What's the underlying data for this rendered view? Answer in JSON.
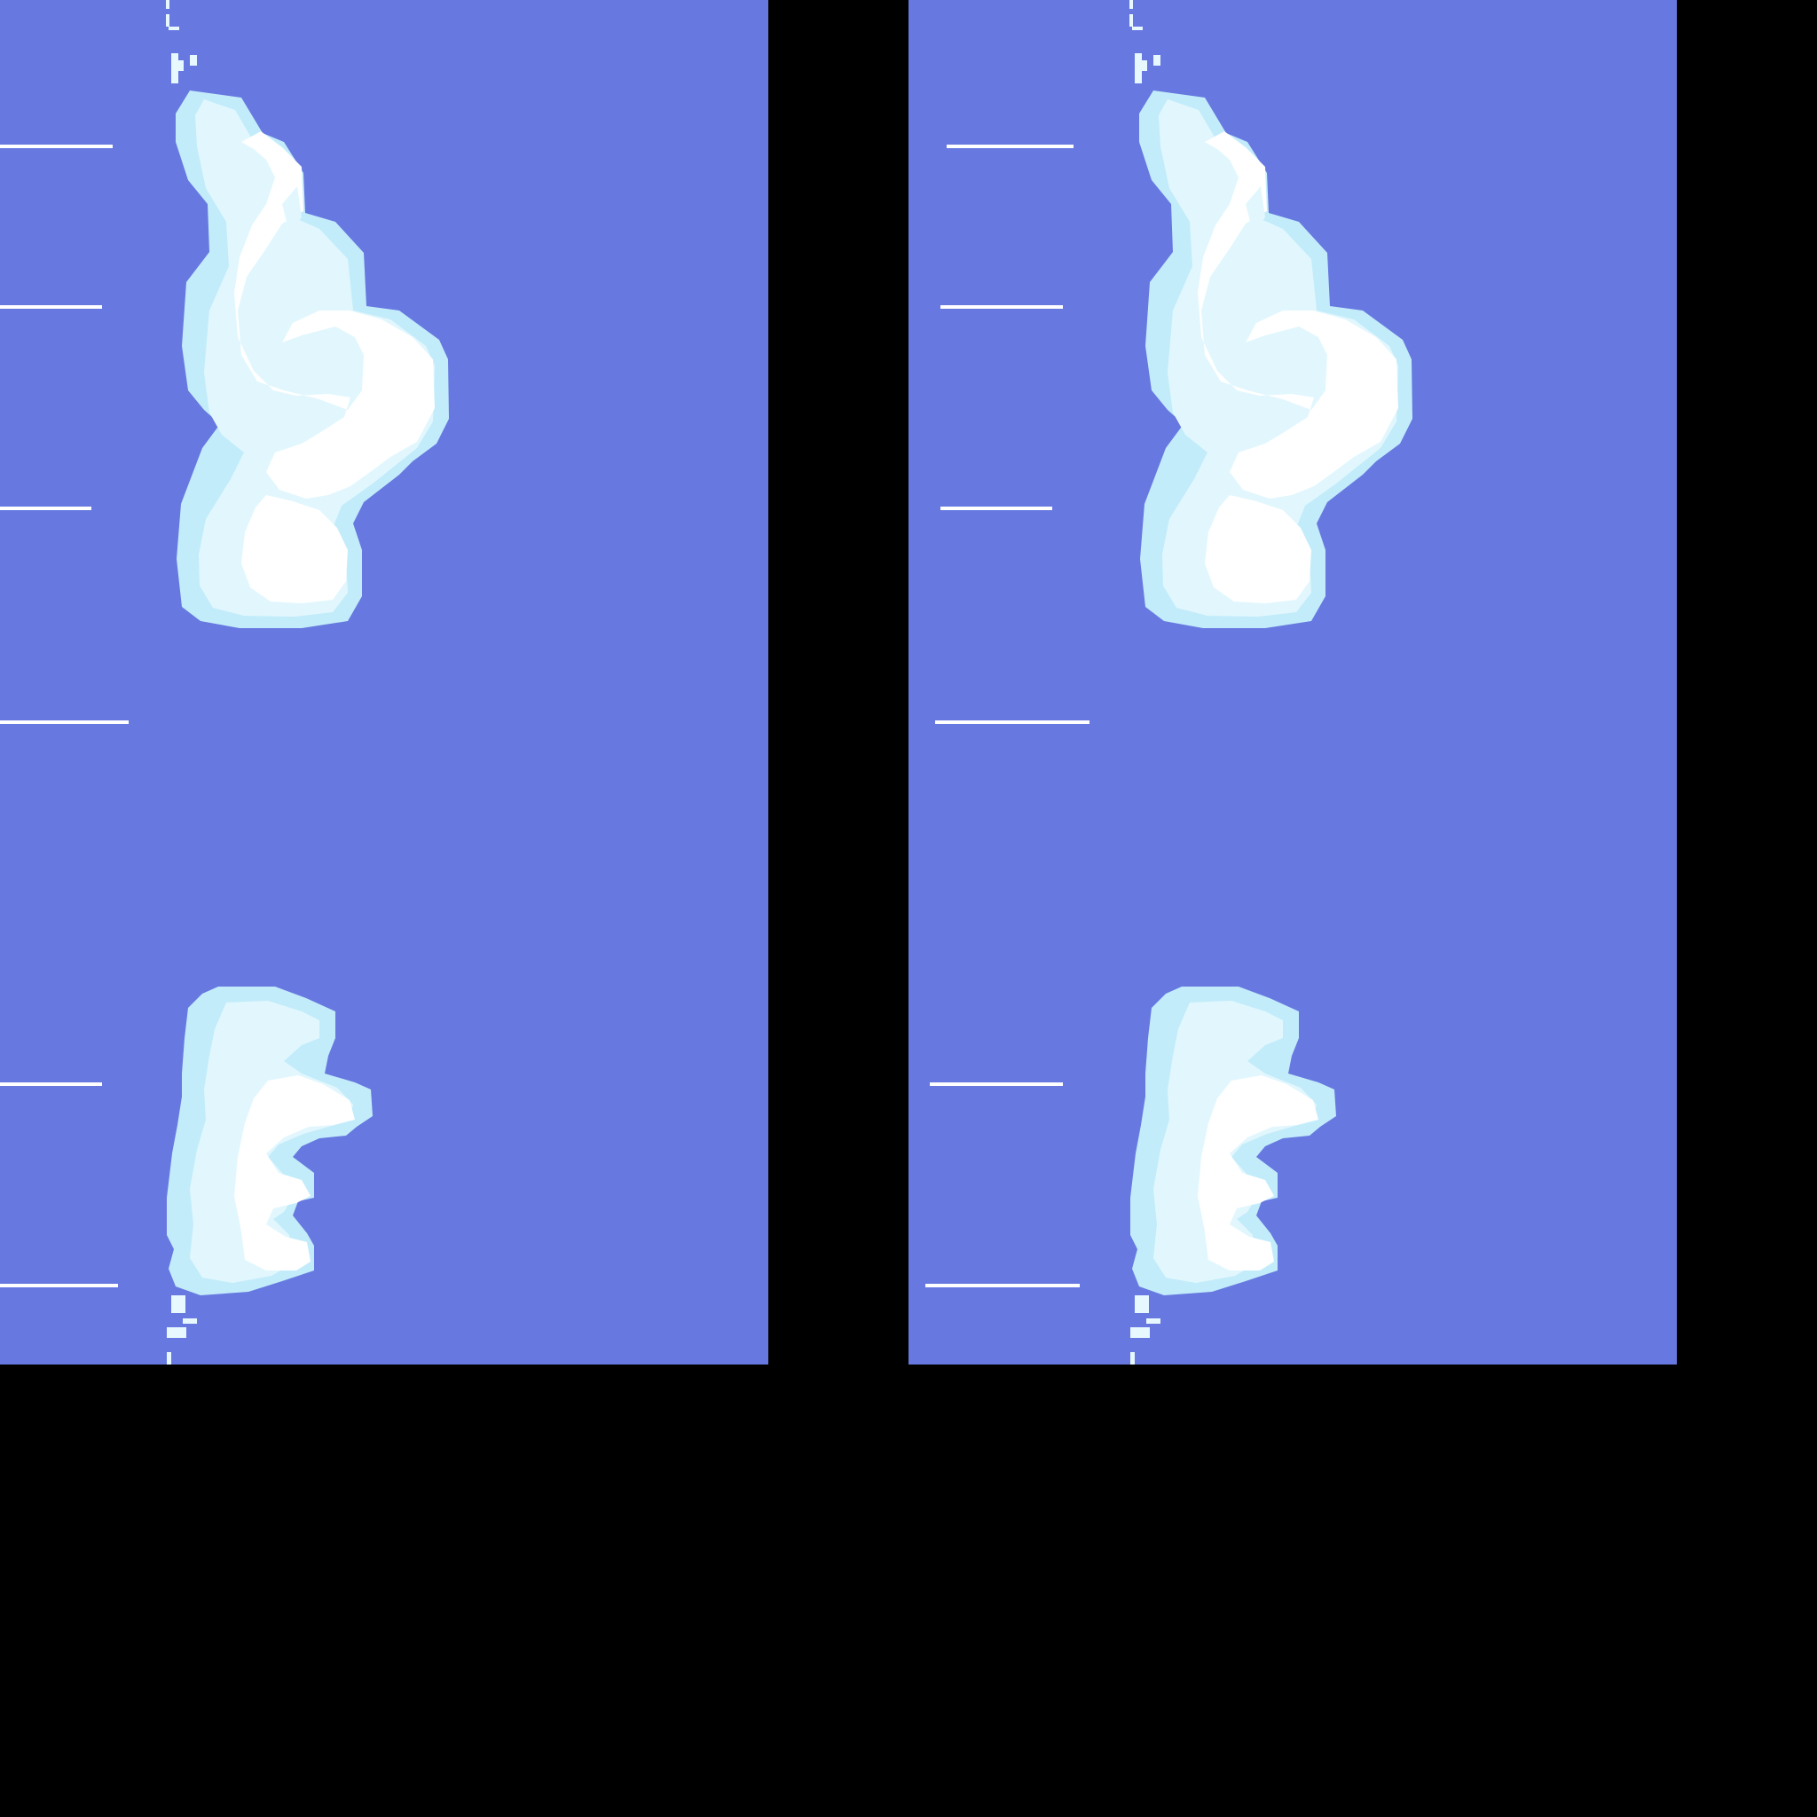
{
  "scene": {
    "frame_count": 2,
    "colors": {
      "letterbox": "#000000",
      "sky": "#6779e0",
      "cloud_edge": "#c3ecfb",
      "cloud_mid": "#e2f7fd",
      "cloud_core": "#ffffff",
      "speed_lines": "#ffffff"
    },
    "frames": [
      {
        "name": "frame-1",
        "elements": [
          "speed-lines",
          "large-cloud",
          "small-cloud",
          "vapor-trail"
        ]
      },
      {
        "name": "frame-2",
        "elements": [
          "speed-lines",
          "large-cloud",
          "small-cloud",
          "vapor-trail"
        ]
      }
    ]
  }
}
